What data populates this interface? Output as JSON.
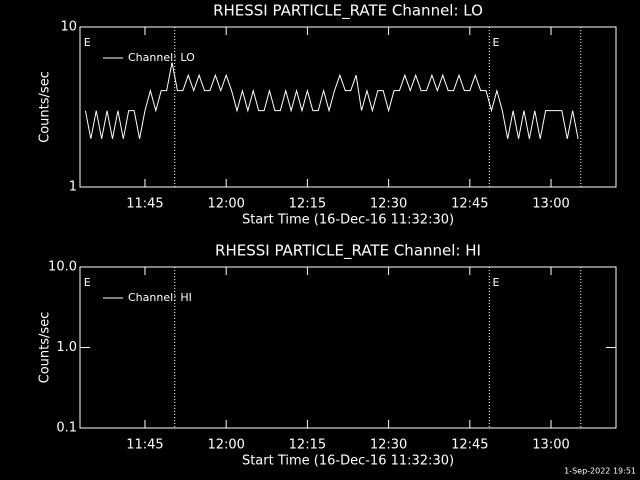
{
  "chart_data": [
    {
      "type": "line",
      "title": "RHESSI PARTICLE_RATE Channel: LO",
      "xlabel": "Start Time (16-Dec-16 11:32:30)",
      "ylabel": "Counts/sec",
      "log_y": true,
      "xlim": [
        693,
        792
      ],
      "xticks": [
        {
          "value": 705,
          "label": "11:45"
        },
        {
          "value": 720,
          "label": "12:00"
        },
        {
          "value": 735,
          "label": "12:15"
        },
        {
          "value": 750,
          "label": "12:30"
        },
        {
          "value": 765,
          "label": "12:45"
        },
        {
          "value": 780,
          "label": "13:00"
        }
      ],
      "ylim": [
        1,
        10
      ],
      "yticks": [
        1,
        10
      ],
      "vlines": [
        710.5,
        768.6,
        785.5
      ],
      "flags": [
        {
          "x": 693.7,
          "label": "E"
        },
        {
          "x": 769.2,
          "label": "E"
        }
      ],
      "series": [
        {
          "name": "Channel: LO",
          "color": "#ffffff",
          "x": [
            694,
            695,
            696,
            697,
            698,
            699,
            700,
            701,
            702,
            703,
            704,
            705,
            706,
            707,
            708,
            709,
            710,
            711,
            712,
            713,
            714,
            715,
            716,
            717,
            718,
            719,
            720,
            721,
            722,
            723,
            724,
            725,
            726,
            727,
            728,
            729,
            730,
            731,
            732,
            733,
            734,
            735,
            736,
            737,
            738,
            739,
            740,
            741,
            742,
            743,
            744,
            745,
            746,
            747,
            748,
            749,
            750,
            751,
            752,
            753,
            754,
            755,
            756,
            757,
            758,
            759,
            760,
            761,
            762,
            763,
            764,
            765,
            766,
            767,
            768,
            769,
            770,
            771,
            772,
            773,
            774,
            775,
            776,
            777,
            778,
            779,
            780,
            781,
            782,
            783,
            784,
            785
          ],
          "values": [
            3,
            2,
            3,
            2,
            3,
            2,
            3,
            2,
            3,
            3,
            2,
            3,
            4,
            3,
            4,
            4,
            6,
            4,
            4,
            5,
            4,
            5,
            4,
            4,
            5,
            4,
            5,
            4,
            3,
            4,
            3,
            4,
            3,
            3,
            4,
            3,
            3,
            4,
            3,
            4,
            3,
            4,
            3,
            3,
            4,
            3,
            4,
            5,
            4,
            4,
            5,
            3,
            4,
            3,
            4,
            4,
            3,
            4,
            4,
            5,
            4,
            5,
            4,
            4,
            5,
            4,
            5,
            4,
            4,
            5,
            4,
            4,
            5,
            4,
            4,
            3,
            4,
            3,
            2,
            3,
            2,
            3,
            2,
            3,
            2,
            3,
            3,
            3,
            3,
            2,
            3,
            2
          ]
        }
      ]
    },
    {
      "type": "line",
      "title": "RHESSI PARTICLE_RATE Channel: HI",
      "xlabel": "Start Time (16-Dec-16 11:32:30)",
      "ylabel": "Counts/sec",
      "log_y": true,
      "xlim": [
        693,
        792
      ],
      "xticks": [
        {
          "value": 705,
          "label": "11:45"
        },
        {
          "value": 720,
          "label": "12:00"
        },
        {
          "value": 735,
          "label": "12:15"
        },
        {
          "value": 750,
          "label": "12:30"
        },
        {
          "value": 765,
          "label": "12:45"
        },
        {
          "value": 780,
          "label": "13:00"
        }
      ],
      "ylim": [
        0.1,
        10
      ],
      "yticks": [
        0.1,
        {
          "value": 1,
          "label": "1.0"
        },
        {
          "value": 10,
          "label": "10.0"
        }
      ],
      "vlines": [
        710.5,
        768.6,
        785.5
      ],
      "flags": [
        {
          "x": 693.7,
          "label": "E"
        },
        {
          "x": 769.2,
          "label": "E"
        }
      ],
      "series": [
        {
          "name": "Channel: HI",
          "color": "#ffffff",
          "x": [],
          "values": []
        }
      ]
    }
  ],
  "footer": "1-Sep-2022 19:51"
}
